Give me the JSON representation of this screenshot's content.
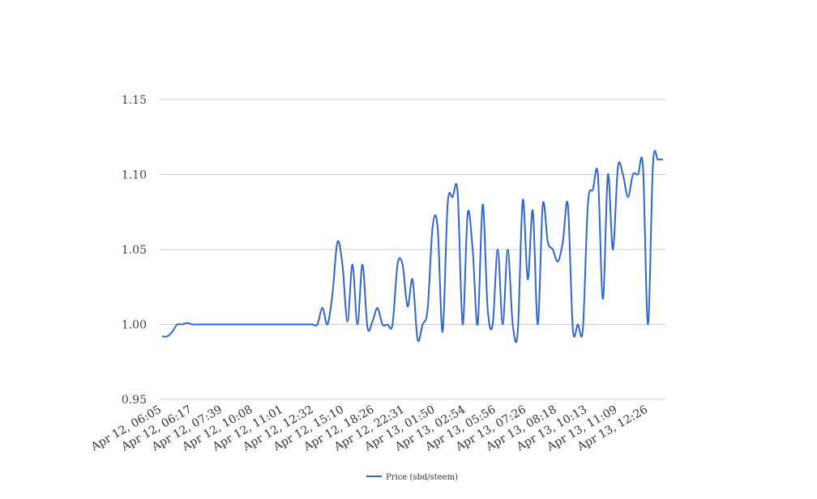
{
  "chart_data": {
    "type": "line",
    "title": "",
    "xlabel": "",
    "ylabel": "",
    "ylim": [
      0.95,
      1.15
    ],
    "yticks": [
      "0.95",
      "1.00",
      "1.05",
      "1.10",
      "1.15"
    ],
    "grid": "horizontal",
    "legend_position": "bottom",
    "xtick_labels": [
      "Apr 12, 06:05",
      "Apr 12, 06:17",
      "Apr 12, 07:39",
      "Apr 12, 10:08",
      "Apr 12, 11:01",
      "Apr 12, 12:32",
      "Apr 12, 15:10",
      "Apr 12, 18:26",
      "Apr 12, 22:31",
      "Apr 13, 01:50",
      "Apr 13, 02:54",
      "Apr 13, 05:56",
      "Apr 13, 07:26",
      "Apr 13, 08:18",
      "Apr 13, 10:13",
      "Apr 13, 11:09",
      "Apr 13, 12:26"
    ],
    "series": [
      {
        "name": "Price (sbd/steem)",
        "color": "#3366cc",
        "values": [
          0.992,
          0.992,
          0.995,
          1.0,
          1.0,
          1.001,
          1.0,
          1.0,
          1.0,
          1.0,
          1.0,
          1.0,
          1.0,
          1.0,
          1.0,
          1.0,
          1.0,
          1.0,
          1.0,
          1.0,
          1.0,
          1.0,
          1.0,
          1.0,
          1.0,
          1.0,
          1.0,
          1.0,
          1.0,
          1.0,
          1.0,
          1.0,
          1.011,
          1.0,
          1.02,
          1.055,
          1.04,
          1.002,
          1.04,
          1.0,
          1.04,
          0.998,
          1.002,
          1.011,
          1.0,
          1.0,
          1.0,
          1.04,
          1.04,
          1.012,
          1.03,
          0.99,
          1.0,
          1.01,
          1.065,
          1.065,
          0.995,
          1.08,
          1.085,
          1.088,
          1.0,
          1.074,
          1.05,
          1.0,
          1.08,
          1.01,
          1.0,
          1.05,
          1.0,
          1.05,
          1.0,
          0.995,
          1.083,
          1.03,
          1.076,
          1.0,
          1.08,
          1.055,
          1.05,
          1.042,
          1.055,
          1.08,
          0.997,
          1.0,
          0.997,
          1.08,
          1.09,
          1.1,
          1.017,
          1.1,
          1.05,
          1.105,
          1.1,
          1.085,
          1.1,
          1.1,
          1.105,
          1.0,
          1.107,
          1.11,
          1.11
        ]
      }
    ]
  }
}
